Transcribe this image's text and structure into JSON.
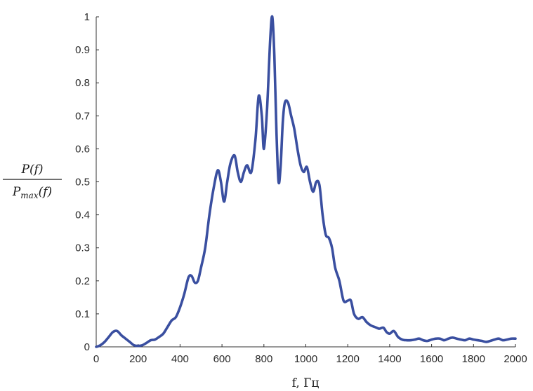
{
  "chart_data": {
    "type": "line",
    "xlabel": "f, Гц",
    "ylabel": {
      "numerator": "P(f)",
      "denominator_main": "P",
      "denominator_sub": "max",
      "denominator_tail": "(f)"
    },
    "xlim": [
      0,
      2000
    ],
    "ylim": [
      0,
      1
    ],
    "xticks": [
      "0",
      "200",
      "400",
      "600",
      "800",
      "1000",
      "1200",
      "1400",
      "1600",
      "1800",
      "2000"
    ],
    "yticks": [
      "0",
      "0.1",
      "0.2",
      "0.3",
      "0.4",
      "0.5",
      "0.6",
      "0.7",
      "0.8",
      "0.9",
      "1"
    ],
    "grid": false,
    "color": "#3a4fa0",
    "series": [
      {
        "x": [
          0,
          20,
          40,
          60,
          80,
          100,
          120,
          140,
          160,
          180,
          200,
          220,
          240,
          260,
          280,
          300,
          320,
          340,
          360,
          380,
          400,
          420,
          440,
          455,
          470,
          485,
          500,
          520,
          540,
          560,
          580,
          595,
          610,
          625,
          640,
          660,
          675,
          690,
          705,
          720,
          740,
          760,
          775,
          790,
          800,
          815,
          830,
          840,
          850,
          860,
          870,
          880,
          890,
          900,
          915,
          930,
          945,
          960,
          975,
          990,
          1005,
          1020,
          1035,
          1050,
          1065,
          1080,
          1095,
          1110,
          1125,
          1140,
          1160,
          1180,
          1200,
          1215,
          1230,
          1250,
          1270,
          1290,
          1310,
          1330,
          1350,
          1370,
          1385,
          1400,
          1420,
          1440,
          1460,
          1480,
          1500,
          1520,
          1540,
          1560,
          1580,
          1600,
          1620,
          1640,
          1660,
          1680,
          1700,
          1720,
          1740,
          1760,
          1780,
          1800,
          1820,
          1840,
          1860,
          1880,
          1900,
          1920,
          1940,
          1960,
          1980,
          2000
        ],
        "y": [
          0.0,
          0.005,
          0.015,
          0.03,
          0.045,
          0.048,
          0.035,
          0.025,
          0.015,
          0.005,
          0.003,
          0.005,
          0.012,
          0.02,
          0.022,
          0.03,
          0.04,
          0.06,
          0.08,
          0.09,
          0.12,
          0.16,
          0.21,
          0.215,
          0.195,
          0.2,
          0.24,
          0.3,
          0.4,
          0.48,
          0.535,
          0.5,
          0.44,
          0.5,
          0.555,
          0.58,
          0.53,
          0.5,
          0.53,
          0.55,
          0.53,
          0.63,
          0.76,
          0.7,
          0.6,
          0.72,
          0.93,
          1.0,
          0.88,
          0.65,
          0.5,
          0.55,
          0.68,
          0.74,
          0.74,
          0.7,
          0.66,
          0.6,
          0.55,
          0.53,
          0.545,
          0.5,
          0.47,
          0.5,
          0.49,
          0.4,
          0.34,
          0.33,
          0.3,
          0.24,
          0.2,
          0.14,
          0.14,
          0.14,
          0.1,
          0.085,
          0.09,
          0.075,
          0.065,
          0.06,
          0.055,
          0.058,
          0.045,
          0.04,
          0.048,
          0.03,
          0.022,
          0.02,
          0.02,
          0.022,
          0.025,
          0.02,
          0.018,
          0.022,
          0.025,
          0.025,
          0.02,
          0.025,
          0.028,
          0.025,
          0.022,
          0.02,
          0.025,
          0.022,
          0.02,
          0.018,
          0.015,
          0.018,
          0.022,
          0.025,
          0.02,
          0.022,
          0.025,
          0.025
        ]
      }
    ]
  }
}
